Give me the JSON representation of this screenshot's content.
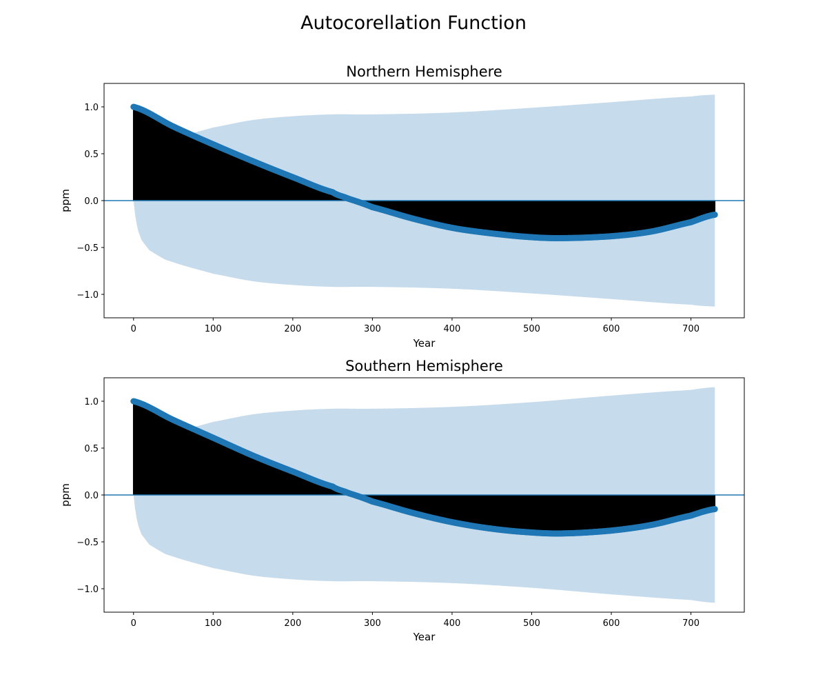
{
  "figure": {
    "title": "Autocorellation Function"
  },
  "colors": {
    "series": "#1f77b4",
    "band": "#c6dbec",
    "stem": "#000000",
    "axes": "#000000"
  },
  "chart_data": [
    {
      "type": "scatter",
      "subtype": "acf-stem",
      "title": "Northern Hemisphere",
      "xlabel": "Year",
      "ylabel": "ppm",
      "xlim": [
        -37,
        767
      ],
      "ylim": [
        -1.25,
        1.25
      ],
      "xticks": [
        0,
        100,
        200,
        300,
        400,
        500,
        600,
        700
      ],
      "xtick_labels": [
        "0",
        "100",
        "200",
        "300",
        "400",
        "500",
        "600",
        "700"
      ],
      "yticks": [
        1.0,
        0.5,
        0.0,
        -0.5,
        -1.0
      ],
      "ytick_labels": [
        "1.0",
        "0.5",
        "0.0",
        "−0.5",
        "−1.0"
      ],
      "max_lag": 730,
      "acf_keypoints": {
        "x": [
          0,
          50,
          100,
          150,
          200,
          250,
          270,
          300,
          350,
          400,
          450,
          500,
          540,
          600,
          650,
          700,
          730
        ],
        "y": [
          1.0,
          0.79,
          0.6,
          0.42,
          0.25,
          0.09,
          0.02,
          -0.07,
          -0.19,
          -0.29,
          -0.35,
          -0.39,
          -0.4,
          -0.38,
          -0.33,
          -0.23,
          -0.15
        ]
      },
      "confidence_band": {
        "x": [
          0,
          2,
          5,
          10,
          20,
          40,
          70,
          100,
          150,
          200,
          250,
          300,
          400,
          500,
          600,
          700,
          730
        ],
        "upper": [
          0.0,
          0.15,
          0.3,
          0.42,
          0.53,
          0.63,
          0.71,
          0.78,
          0.86,
          0.9,
          0.92,
          0.92,
          0.94,
          0.99,
          1.05,
          1.11,
          1.13
        ]
      },
      "grid": false,
      "legend": "none"
    },
    {
      "type": "scatter",
      "subtype": "acf-stem",
      "title": "Southern Hemisphere",
      "xlabel": "Year",
      "ylabel": "ppm",
      "xlim": [
        -37,
        767
      ],
      "ylim": [
        -1.25,
        1.25
      ],
      "xticks": [
        0,
        100,
        200,
        300,
        400,
        500,
        600,
        700
      ],
      "xtick_labels": [
        "0",
        "100",
        "200",
        "300",
        "400",
        "500",
        "600",
        "700"
      ],
      "yticks": [
        1.0,
        0.5,
        0.0,
        -0.5,
        -1.0
      ],
      "ytick_labels": [
        "1.0",
        "0.5",
        "0.0",
        "−0.5",
        "−1.0"
      ],
      "max_lag": 730,
      "acf_keypoints": {
        "x": [
          0,
          50,
          100,
          150,
          200,
          250,
          270,
          300,
          350,
          400,
          450,
          500,
          540,
          600,
          650,
          700,
          730
        ],
        "y": [
          1.0,
          0.8,
          0.61,
          0.42,
          0.25,
          0.09,
          0.02,
          -0.07,
          -0.19,
          -0.29,
          -0.36,
          -0.4,
          -0.41,
          -0.38,
          -0.32,
          -0.22,
          -0.15
        ]
      },
      "confidence_band": {
        "x": [
          0,
          2,
          5,
          10,
          20,
          40,
          70,
          100,
          150,
          200,
          250,
          300,
          400,
          500,
          600,
          700,
          730
        ],
        "upper": [
          0.0,
          0.15,
          0.3,
          0.42,
          0.53,
          0.63,
          0.71,
          0.78,
          0.86,
          0.9,
          0.92,
          0.92,
          0.94,
          0.99,
          1.06,
          1.12,
          1.15
        ]
      },
      "grid": false,
      "legend": "none"
    }
  ]
}
